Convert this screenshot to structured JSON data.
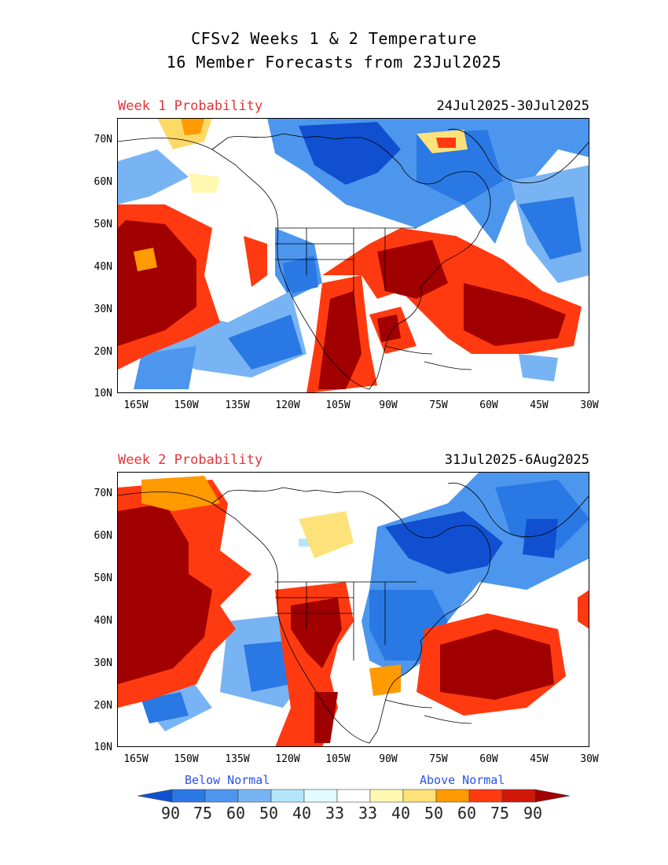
{
  "title": {
    "line1": "CFSv2 Weeks 1 & 2 Temperature",
    "line2": "16 Member Forecasts from 23Jul2025"
  },
  "panels": [
    {
      "label": "Week 1 Probability",
      "dates": "24Jul2025-30Jul2025"
    },
    {
      "label": "Week 2 Probability",
      "dates": "31Jul2025-6Aug2025"
    }
  ],
  "axes": {
    "lat_labels": [
      "70N",
      "60N",
      "50N",
      "40N",
      "30N",
      "20N",
      "10N"
    ],
    "lon_labels": [
      "165W",
      "150W",
      "135W",
      "120W",
      "105W",
      "90W",
      "75W",
      "60W",
      "45W",
      "30W"
    ]
  },
  "legend": {
    "below_label": "Below Normal",
    "above_label": "Above Normal",
    "tick_labels": [
      "90",
      "75",
      "60",
      "50",
      "40",
      "33",
      "33",
      "40",
      "50",
      "60",
      "75",
      "90"
    ],
    "colors": [
      "#1050d0",
      "#2a78e4",
      "#4c96ee",
      "#78b4f4",
      "#b4e6fa",
      "#e2fcfe",
      "#ffffff",
      "#fff8b0",
      "#fde27a",
      "#ff9a00",
      "#ff3a10",
      "#d21808",
      "#a00000"
    ]
  }
}
